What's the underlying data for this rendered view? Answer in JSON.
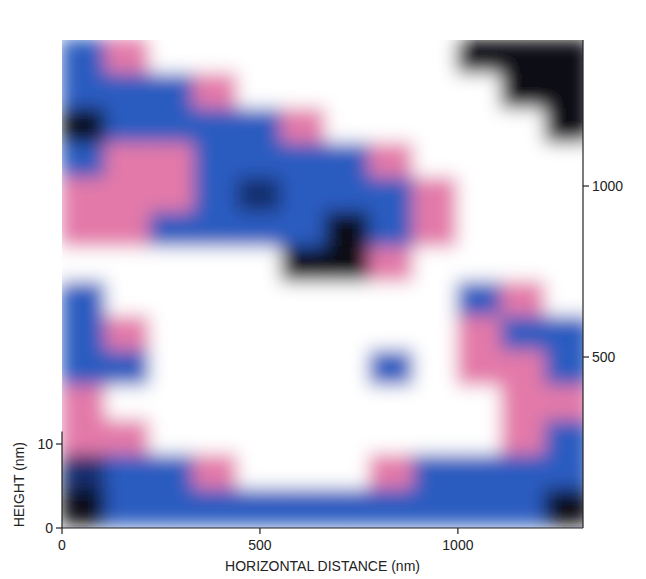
{
  "chart_data": {
    "type": "surface",
    "x_label": "HORIZONTAL DISTANCE (nm)",
    "height_label": "HEIGHT (nm)",
    "xlim": [
      0,
      1316
    ],
    "xticks": [
      0,
      500,
      1000
    ],
    "ylim": [
      0,
      1427
    ],
    "yticks": [
      500,
      1000
    ],
    "height_lim": [
      0,
      11.5
    ],
    "height_ticks": [
      0,
      10
    ],
    "colorscale": [
      {
        "value": 0,
        "color": "#0d0d12"
      },
      {
        "value": 1.5,
        "color": "#1c3f9c"
      },
      {
        "value": 3,
        "color": "#2a5cc0"
      },
      {
        "value": 5,
        "color": "#d42f7c"
      },
      {
        "value": 7,
        "color": "#f1c3d6"
      },
      {
        "value": 9,
        "color": "#ffffff"
      }
    ],
    "x": [
      56,
      167,
      278,
      389,
      500,
      611,
      722,
      833,
      944,
      1055,
      1166,
      1277
    ],
    "y": [
      1377,
      1276,
      1174,
      1073,
      972,
      871,
      769,
      668,
      567,
      466,
      364,
      263,
      162,
      61
    ],
    "z": [
      [
        3,
        6,
        9,
        9,
        9,
        9,
        9,
        9,
        9,
        0,
        0,
        0
      ],
      [
        3,
        3,
        3,
        6,
        9,
        9,
        9,
        9,
        9,
        9,
        0,
        0
      ],
      [
        0,
        3,
        3,
        3,
        3,
        6,
        9,
        9,
        9,
        9,
        9,
        0
      ],
      [
        3,
        6,
        6,
        3,
        3,
        3,
        3,
        6,
        9,
        9,
        9,
        9
      ],
      [
        6,
        6,
        6,
        3,
        1,
        3,
        3,
        3,
        6,
        9,
        9,
        9
      ],
      [
        6,
        6,
        3,
        3,
        3,
        3,
        0,
        3,
        6,
        9,
        9,
        9
      ],
      [
        9,
        9,
        9,
        9,
        9,
        0,
        0,
        6,
        9,
        9,
        9,
        9
      ],
      [
        3,
        9,
        9,
        9,
        9,
        9,
        9,
        9,
        9,
        3,
        6,
        9
      ],
      [
        3,
        6,
        9,
        9,
        9,
        9,
        9,
        9,
        9,
        6,
        3,
        3
      ],
      [
        3,
        3,
        9,
        9,
        9,
        9,
        9,
        3,
        9,
        6,
        6,
        3
      ],
      [
        6,
        9,
        9,
        9,
        9,
        9,
        9,
        9,
        9,
        9,
        6,
        6
      ],
      [
        6,
        6,
        9,
        9,
        9,
        9,
        9,
        9,
        9,
        9,
        6,
        3
      ],
      [
        1,
        3,
        3,
        6,
        9,
        9,
        9,
        6,
        3,
        3,
        3,
        3
      ],
      [
        0,
        3,
        3,
        3,
        3,
        3,
        3,
        3,
        3,
        3,
        3,
        0
      ]
    ]
  }
}
